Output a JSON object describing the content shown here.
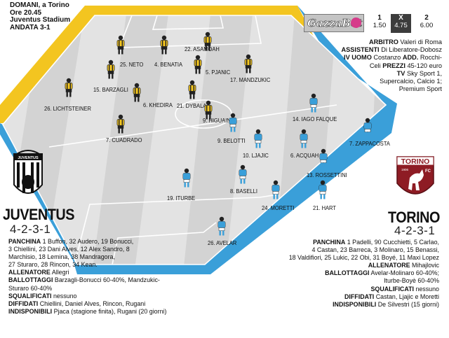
{
  "match": {
    "header_lines": [
      "DOMANI, a Torino",
      "Ore 20.45",
      "Juventus Stadium",
      "ANDATA 3-1"
    ]
  },
  "betting": {
    "brand_text": "GazzaBet",
    "odds": [
      {
        "label": "1",
        "value": "1.50"
      },
      {
        "label": "X",
        "value": "4.75"
      },
      {
        "label": "2",
        "value": "6.00"
      }
    ]
  },
  "info": {
    "arbitro_label": "ARBITRO",
    "arbitro": "Valeri di Roma",
    "assistenti_label": "ASSISTENTI",
    "assistenti": "Di Liberatore-Dobosz",
    "ivuomo_label": "IV UOMO",
    "ivuomo": "Costanzo",
    "add_label": "ADD.",
    "add_1": "Rocchi-",
    "add_2": "Celi",
    "prezzi_label": "PREZZI",
    "prezzi": "45-120 euro",
    "tv_label": "TV",
    "tv_1": "Sky Sport 1,",
    "tv_2": "Supercalcio, Calcio 1;",
    "tv_3": "Premium Sport"
  },
  "juventus": {
    "logo_text": "JUVENTUS",
    "name": "JUVENTUS",
    "formation": "4-2-3-1",
    "panchina_label": "PANCHINA",
    "panchina_1": "1 Buffon, 32 Audero, 19 Bonucci,",
    "panchina_2": "3 Chiellini, 23 Dani Alves, 12 Alex Sandro, 8",
    "panchina_3": "Marchisio, 18 Lemina, 38 Mandragora,",
    "panchina_4": "27 Sturaro, 28 Rincon, 34 Kean.",
    "allenatore_label": "ALLENATORE",
    "allenatore": "Allegri",
    "ballottaggi_label": "BALLOTTAGGI",
    "ballottaggi_1": "Barzagli-Bonucci 60-40%, Mandzukic-",
    "ballottaggi_2": "Sturaro 60-40%",
    "squalificati_label": "SQUALIFICATI",
    "squalificati": "nessuno",
    "diffidati_label": "DIFFIDATI",
    "diffidati": "Chiellini, Daniel Alves, Rincon, Rugani",
    "indisponibili_label": "INDISPONIBILI",
    "indisponibili": "Pjaca (stagione finita), Rugani (20 giorni)",
    "players": [
      "25. NETO",
      "4. BENATIA",
      "22. ASAMOAH",
      "15. BARZAGLI",
      "6. KHEDIRA",
      "5. PJANIC",
      "17. MANDZUKIC",
      "26. LICHTSTEINER",
      "21. DYBALA",
      "9. HIGUAIN",
      "7. CUADRADO"
    ]
  },
  "torino": {
    "logo_text": "TORINO",
    "logo_year": "1906",
    "logo_fc": "FC",
    "name": "TORINO",
    "formation": "4-2-3-1",
    "panchina_label": "PANCHINA",
    "panchina_1": "1 Padelli, 90 Cucchietti, 5 Carlao,",
    "panchina_2": "4 Castan, 23 Barreca, 3 Molinaro, 15 Benassi,",
    "panchina_3": "18 Valdifiori, 25 Lukic, 22 Obi, 31 Boyé, 11 Maxi Lopez",
    "allenatore_label": "ALLENATORE",
    "allenatore": "Mihajlovic",
    "ballottaggi_label": "BALLOTTAGGI",
    "ballottaggi_1": "Avelar-Molinaro 60-40%;",
    "ballottaggi_2": "Iturbe-Boyè 60-40%",
    "squalificati_label": "SQUALIFICATI",
    "squalificati": "nessuno",
    "diffidati_label": "DIFFIDATI",
    "diffidati": "Castan, Ljajic e Moretti",
    "indisponibili_label": "INDISPONIBILI",
    "indisponibili": "De Silvestri (15 giorni)",
    "players": [
      "14. IAGO FALQUE",
      "7. ZAPPACOSTA",
      "9. BELOTTI",
      "10. LJAJIC",
      "6. ACQUAH",
      "13. ROSSETTINI",
      "19. ITURBE",
      "8. BASELLI",
      "24. MORETTI",
      "21. HART",
      "26. AVELAR"
    ]
  },
  "colors": {
    "juventus_yellow": "#f3c520",
    "torino_blue": "#3a9fd9",
    "pitch_light": "#e3e3e3",
    "pitch_dark": "#cfcfcf",
    "torino_logo": "#8e1c24"
  }
}
